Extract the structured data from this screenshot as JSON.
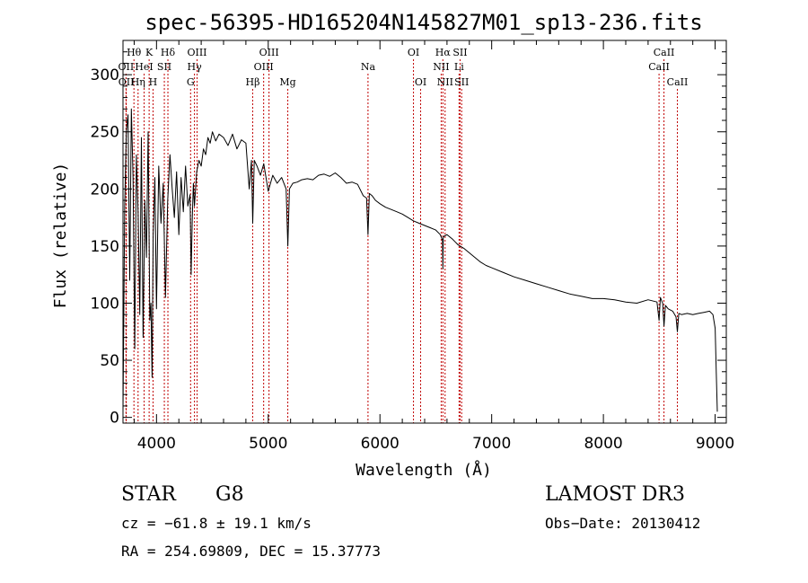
{
  "chart_data": {
    "type": "line",
    "title": "spec-56395-HD165204N145827M01_sp13-236.fits",
    "xlabel": "Wavelength (Å)",
    "ylabel": "Flux (relative)",
    "xlim": [
      3700,
      9100
    ],
    "ylim": [
      -5,
      330
    ],
    "xticks": [
      4000,
      5000,
      6000,
      7000,
      8000,
      9000
    ],
    "yticks": [
      0,
      50,
      100,
      150,
      200,
      250,
      300
    ],
    "grid": false,
    "spectral_lines": [
      {
        "label": "OII",
        "wavelength": 3727,
        "row": 2
      },
      {
        "label": "OII",
        "wavelength": 3729,
        "row": 3
      },
      {
        "label": "Hθ",
        "wavelength": 3798,
        "row": 1
      },
      {
        "label": "HeI",
        "wavelength": 3889,
        "row": 2
      },
      {
        "label": "Hη",
        "wavelength": 3835,
        "row": 3
      },
      {
        "label": "K",
        "wavelength": 3934,
        "row": 1
      },
      {
        "label": "H",
        "wavelength": 3969,
        "row": 3
      },
      {
        "label": "SII",
        "wavelength": 4070,
        "row": 2
      },
      {
        "label": "Hδ",
        "wavelength": 4102,
        "row": 1
      },
      {
        "label": "OIII",
        "wavelength": 4363,
        "row": 1
      },
      {
        "label": "Hγ",
        "wavelength": 4340,
        "row": 2
      },
      {
        "label": "G",
        "wavelength": 4305,
        "row": 3
      },
      {
        "label": "Hβ",
        "wavelength": 4861,
        "row": 3
      },
      {
        "label": "OIII",
        "wavelength": 4959,
        "row": 2
      },
      {
        "label": "OIII",
        "wavelength": 5007,
        "row": 1
      },
      {
        "label": "Mg",
        "wavelength": 5175,
        "row": 3
      },
      {
        "label": "Na",
        "wavelength": 5893,
        "row": 2
      },
      {
        "label": "OI",
        "wavelength": 6300,
        "row": 1
      },
      {
        "label": "OI",
        "wavelength": 6364,
        "row": 3
      },
      {
        "label": "NII",
        "wavelength": 6548,
        "row": 2
      },
      {
        "label": "Hα",
        "wavelength": 6563,
        "row": 1
      },
      {
        "label": "NII",
        "wavelength": 6583,
        "row": 3
      },
      {
        "label": "SII",
        "wavelength": 6717,
        "row": 1
      },
      {
        "label": "Li",
        "wavelength": 6708,
        "row": 2
      },
      {
        "label": "SII",
        "wavelength": 6731,
        "row": 3
      },
      {
        "label": "CaII",
        "wavelength": 8498,
        "row": 2
      },
      {
        "label": "CaII",
        "wavelength": 8542,
        "row": 1
      },
      {
        "label": "CaII",
        "wavelength": 8662,
        "row": 3
      }
    ],
    "series": [
      {
        "name": "flux",
        "x": [
          3700,
          3715,
          3730,
          3745,
          3760,
          3775,
          3790,
          3805,
          3820,
          3835,
          3850,
          3865,
          3880,
          3895,
          3910,
          3925,
          3940,
          3950,
          3960,
          3970,
          3985,
          4000,
          4020,
          4040,
          4060,
          4080,
          4100,
          4120,
          4140,
          4160,
          4180,
          4200,
          4220,
          4240,
          4260,
          4280,
          4300,
          4310,
          4320,
          4330,
          4340,
          4360,
          4380,
          4400,
          4420,
          4440,
          4460,
          4480,
          4500,
          4530,
          4560,
          4600,
          4640,
          4680,
          4720,
          4760,
          4800,
          4830,
          4850,
          4861,
          4875,
          4900,
          4930,
          4960,
          5000,
          5040,
          5080,
          5120,
          5160,
          5175,
          5190,
          5220,
          5260,
          5300,
          5350,
          5400,
          5450,
          5500,
          5550,
          5600,
          5650,
          5700,
          5750,
          5800,
          5850,
          5880,
          5893,
          5905,
          5930,
          5960,
          6000,
          6050,
          6100,
          6150,
          6200,
          6250,
          6300,
          6350,
          6400,
          6450,
          6500,
          6540,
          6560,
          6563,
          6566,
          6580,
          6600,
          6650,
          6700,
          6750,
          6800,
          6850,
          6900,
          6950,
          7000,
          7100,
          7200,
          7300,
          7400,
          7500,
          7600,
          7700,
          7800,
          7900,
          8000,
          8100,
          8200,
          8300,
          8400,
          8480,
          8498,
          8510,
          8530,
          8542,
          8555,
          8580,
          8620,
          8650,
          8662,
          8675,
          8700,
          8750,
          8800,
          8850,
          8900,
          8950,
          8980,
          9000,
          9010,
          9020
        ],
        "values": [
          5,
          185,
          250,
          265,
          120,
          270,
          210,
          60,
          230,
          180,
          90,
          245,
          70,
          190,
          140,
          250,
          85,
          100,
          35,
          160,
          210,
          95,
          220,
          170,
          205,
          105,
          190,
          230,
          200,
          175,
          215,
          160,
          210,
          180,
          220,
          185,
          195,
          125,
          175,
          205,
          185,
          215,
          225,
          220,
          235,
          230,
          245,
          240,
          250,
          242,
          248,
          245,
          238,
          248,
          235,
          243,
          240,
          200,
          225,
          170,
          225,
          220,
          212,
          222,
          198,
          212,
          205,
          210,
          200,
          150,
          200,
          205,
          206,
          208,
          209,
          208,
          212,
          213,
          211,
          214,
          210,
          205,
          206,
          204,
          194,
          192,
          160,
          196,
          194,
          190,
          187,
          184,
          182,
          180,
          178,
          175,
          172,
          170,
          168,
          166,
          164,
          160,
          155,
          130,
          158,
          159,
          160,
          156,
          151,
          148,
          144,
          140,
          136,
          133,
          131,
          127,
          123,
          120,
          117,
          114,
          111,
          108,
          106,
          104,
          104,
          103,
          101,
          100,
          103,
          101,
          85,
          105,
          100,
          80,
          98,
          95,
          93,
          88,
          75,
          91,
          90,
          91,
          90,
          91,
          92,
          93,
          90,
          78,
          40,
          5
        ]
      }
    ]
  },
  "annotations": {
    "object_type": "STAR",
    "spectral_class": "G8",
    "survey": "LAMOST DR3",
    "redshift": "cz = −61.8 ± 19.1 km/s",
    "obs_date": "Obs−Date: 20130412",
    "coordinates": "RA = 254.69809, DEC =  15.37773"
  }
}
